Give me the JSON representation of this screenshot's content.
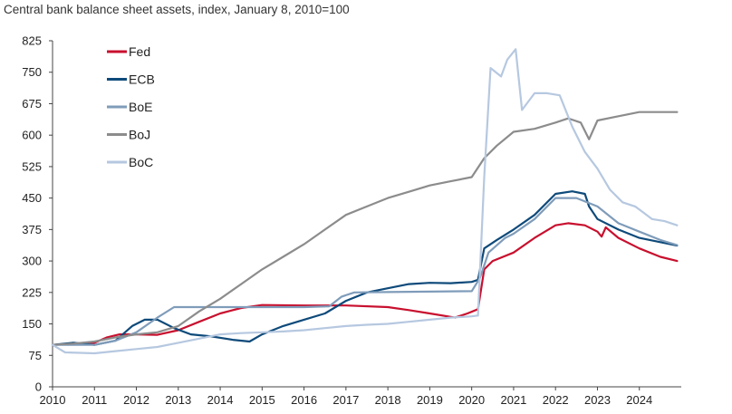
{
  "chart_data": {
    "type": "line",
    "title": "Central bank balance sheet assets, index, January 8, 2010=100",
    "xlabel": "",
    "ylabel": "",
    "xlim": [
      2010,
      2025
    ],
    "ylim": [
      0,
      825
    ],
    "x_ticks": [
      "2010",
      "2011",
      "2012",
      "2013",
      "2014",
      "2015",
      "2016",
      "2017",
      "2018",
      "2019",
      "2020",
      "2021",
      "2022",
      "2023",
      "2024"
    ],
    "y_ticks": [
      "0",
      "75",
      "150",
      "225",
      "300",
      "375",
      "450",
      "525",
      "600",
      "675",
      "750",
      "825"
    ],
    "grid": false,
    "legend_position": "top-left",
    "series": [
      {
        "name": "Fed",
        "color": "#c8102e",
        "points": [
          [
            2010,
            100
          ],
          [
            2010.5,
            102
          ],
          [
            2011,
            105
          ],
          [
            2011.3,
            118
          ],
          [
            2011.6,
            125
          ],
          [
            2012,
            125
          ],
          [
            2012.5,
            124
          ],
          [
            2013,
            135
          ],
          [
            2013.5,
            155
          ],
          [
            2014,
            175
          ],
          [
            2014.5,
            188
          ],
          [
            2015,
            195
          ],
          [
            2016,
            194
          ],
          [
            2017,
            194
          ],
          [
            2018,
            190
          ],
          [
            2018.5,
            183
          ],
          [
            2019,
            175
          ],
          [
            2019.6,
            165
          ],
          [
            2019.9,
            175
          ],
          [
            2020.15,
            185
          ],
          [
            2020.3,
            280
          ],
          [
            2020.5,
            300
          ],
          [
            2021,
            320
          ],
          [
            2021.5,
            355
          ],
          [
            2022,
            385
          ],
          [
            2022.3,
            390
          ],
          [
            2022.7,
            385
          ],
          [
            2023,
            370
          ],
          [
            2023.1,
            358
          ],
          [
            2023.2,
            380
          ],
          [
            2023.5,
            355
          ],
          [
            2024,
            330
          ],
          [
            2024.5,
            310
          ],
          [
            2024.9,
            300
          ]
        ]
      },
      {
        "name": "ECB",
        "color": "#0e4a7a",
        "points": [
          [
            2010,
            100
          ],
          [
            2010.5,
            105
          ],
          [
            2011,
            100
          ],
          [
            2011.5,
            110
          ],
          [
            2011.9,
            145
          ],
          [
            2012.2,
            160
          ],
          [
            2012.5,
            160
          ],
          [
            2012.9,
            140
          ],
          [
            2013.3,
            125
          ],
          [
            2013.8,
            120
          ],
          [
            2014.3,
            112
          ],
          [
            2014.7,
            108
          ],
          [
            2015,
            125
          ],
          [
            2015.5,
            145
          ],
          [
            2016,
            160
          ],
          [
            2016.5,
            175
          ],
          [
            2017,
            205
          ],
          [
            2017.5,
            225
          ],
          [
            2018,
            235
          ],
          [
            2018.5,
            245
          ],
          [
            2019,
            248
          ],
          [
            2019.5,
            247
          ],
          [
            2020,
            250
          ],
          [
            2020.15,
            255
          ],
          [
            2020.3,
            330
          ],
          [
            2020.6,
            350
          ],
          [
            2021,
            375
          ],
          [
            2021.5,
            410
          ],
          [
            2022,
            460
          ],
          [
            2022.4,
            466
          ],
          [
            2022.7,
            460
          ],
          [
            2022.8,
            430
          ],
          [
            2023,
            400
          ],
          [
            2023.5,
            375
          ],
          [
            2024,
            355
          ],
          [
            2024.5,
            345
          ],
          [
            2024.9,
            337
          ]
        ]
      },
      {
        "name": "BoE",
        "color": "#7f9cba",
        "points": [
          [
            2010,
            100
          ],
          [
            2011,
            100
          ],
          [
            2011.5,
            110
          ],
          [
            2012,
            130
          ],
          [
            2012.5,
            165
          ],
          [
            2012.9,
            190
          ],
          [
            2013.5,
            190
          ],
          [
            2014,
            190
          ],
          [
            2015,
            190
          ],
          [
            2016,
            190
          ],
          [
            2016.6,
            192
          ],
          [
            2016.9,
            215
          ],
          [
            2017.2,
            225
          ],
          [
            2018,
            226
          ],
          [
            2019,
            227
          ],
          [
            2020,
            228
          ],
          [
            2020.2,
            260
          ],
          [
            2020.4,
            320
          ],
          [
            2020.8,
            355
          ],
          [
            2021,
            365
          ],
          [
            2021.5,
            400
          ],
          [
            2022,
            450
          ],
          [
            2022.5,
            450
          ],
          [
            2023,
            430
          ],
          [
            2023.5,
            390
          ],
          [
            2024,
            370
          ],
          [
            2024.5,
            350
          ],
          [
            2024.9,
            338
          ]
        ]
      },
      {
        "name": "BoJ",
        "color": "#8c8c8c",
        "points": [
          [
            2010,
            100
          ],
          [
            2010.5,
            103
          ],
          [
            2011,
            108
          ],
          [
            2011.5,
            118
          ],
          [
            2012,
            125
          ],
          [
            2012.5,
            130
          ],
          [
            2013,
            145
          ],
          [
            2013.5,
            180
          ],
          [
            2014,
            210
          ],
          [
            2014.5,
            245
          ],
          [
            2015,
            280
          ],
          [
            2015.5,
            310
          ],
          [
            2016,
            340
          ],
          [
            2016.5,
            375
          ],
          [
            2017,
            410
          ],
          [
            2017.5,
            430
          ],
          [
            2018,
            450
          ],
          [
            2018.5,
            465
          ],
          [
            2019,
            480
          ],
          [
            2019.5,
            490
          ],
          [
            2020,
            500
          ],
          [
            2020.3,
            545
          ],
          [
            2020.6,
            575
          ],
          [
            2021,
            608
          ],
          [
            2021.5,
            615
          ],
          [
            2022,
            630
          ],
          [
            2022.3,
            640
          ],
          [
            2022.6,
            630
          ],
          [
            2022.8,
            590
          ],
          [
            2023,
            635
          ],
          [
            2023.5,
            645
          ],
          [
            2024,
            655
          ],
          [
            2024.5,
            655
          ],
          [
            2024.9,
            655
          ]
        ]
      },
      {
        "name": "BoC",
        "color": "#b6c8e0",
        "points": [
          [
            2010,
            100
          ],
          [
            2010.3,
            82
          ],
          [
            2011,
            80
          ],
          [
            2011.5,
            85
          ],
          [
            2012,
            90
          ],
          [
            2012.5,
            95
          ],
          [
            2013,
            105
          ],
          [
            2013.5,
            115
          ],
          [
            2014,
            125
          ],
          [
            2014.5,
            128
          ],
          [
            2015,
            130
          ],
          [
            2015.5,
            132
          ],
          [
            2016,
            135
          ],
          [
            2016.5,
            140
          ],
          [
            2017,
            145
          ],
          [
            2017.5,
            148
          ],
          [
            2018,
            150
          ],
          [
            2018.5,
            155
          ],
          [
            2019,
            160
          ],
          [
            2019.5,
            165
          ],
          [
            2020,
            168
          ],
          [
            2020.15,
            170
          ],
          [
            2020.3,
            500
          ],
          [
            2020.45,
            760
          ],
          [
            2020.7,
            740
          ],
          [
            2020.85,
            780
          ],
          [
            2021.05,
            805
          ],
          [
            2021.2,
            660
          ],
          [
            2021.5,
            700
          ],
          [
            2021.8,
            700
          ],
          [
            2022.1,
            695
          ],
          [
            2022.4,
            620
          ],
          [
            2022.7,
            560
          ],
          [
            2023,
            520
          ],
          [
            2023.3,
            470
          ],
          [
            2023.6,
            440
          ],
          [
            2023.9,
            430
          ],
          [
            2024.1,
            415
          ],
          [
            2024.3,
            400
          ],
          [
            2024.6,
            395
          ],
          [
            2024.9,
            385
          ]
        ]
      }
    ]
  }
}
